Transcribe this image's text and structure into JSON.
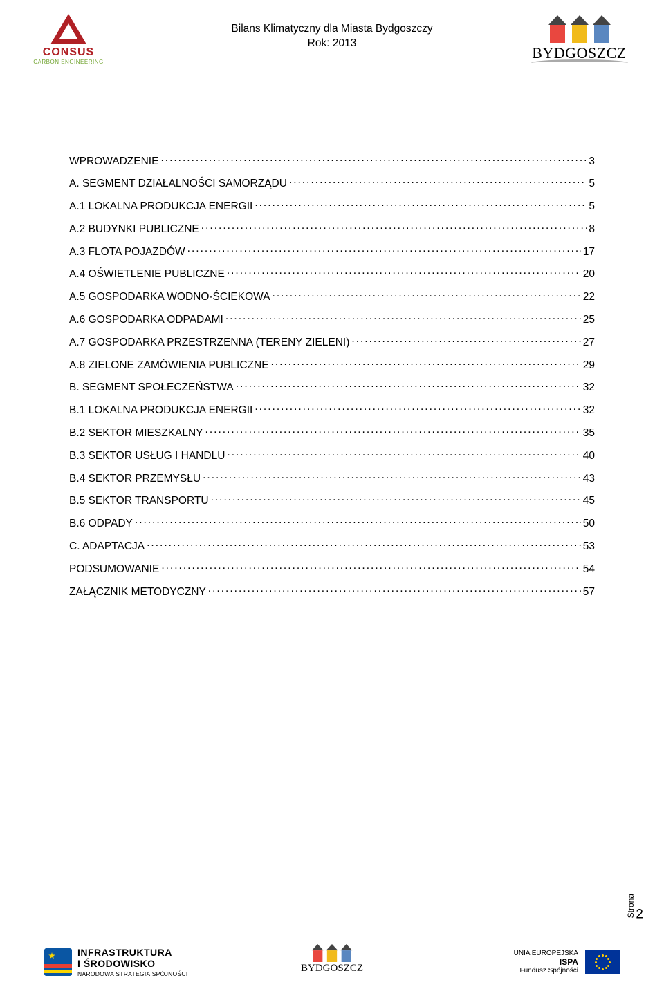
{
  "header": {
    "title_line1": "Bilans Klimatyczny dla Miasta Bydgoszczy",
    "title_line2": "Rok: 2013",
    "logo_left": {
      "name": "CONSUS",
      "sub": "CARBON ENGINEERING",
      "color": "#b02025",
      "sub_color": "#73a533"
    },
    "logo_right": {
      "text": "BYDGOSZCZ",
      "house_colors": [
        "#e9473f",
        "#f1bb1b",
        "#5a87c0"
      ]
    }
  },
  "toc": {
    "font_size_pt": 12,
    "items": [
      {
        "label": "WPROWADZENIE",
        "page": "3"
      },
      {
        "label": "A. SEGMENT DZIAŁALNOŚCI SAMORZĄDU",
        "page": "5"
      },
      {
        "label": "A.1 LOKALNA PRODUKCJA ENERGII",
        "page": "5"
      },
      {
        "label": "A.2 BUDYNKI PUBLICZNE",
        "page": "8"
      },
      {
        "label": "A.3 FLOTA POJAZDÓW",
        "page": "17"
      },
      {
        "label": "A.4 OŚWIETLENIE PUBLICZNE",
        "page": "20"
      },
      {
        "label": "A.5 GOSPODARKA WODNO-ŚCIEKOWA",
        "page": "22"
      },
      {
        "label": "A.6 GOSPODARKA ODPADAMI",
        "page": "25"
      },
      {
        "label": "A.7 GOSPODARKA PRZESTRZENNA (TERENY ZIELENI)",
        "page": "27"
      },
      {
        "label": "A.8 ZIELONE ZAMÓWIENIA PUBLICZNE",
        "page": "29"
      },
      {
        "label": "B. SEGMENT SPOŁECZEŃSTWA",
        "page": "32"
      },
      {
        "label": "B.1 LOKALNA PRODUKCJA ENERGII",
        "page": "32"
      },
      {
        "label": "B.2 SEKTOR MIESZKALNY",
        "page": "35"
      },
      {
        "label": "B.3 SEKTOR USŁUG I HANDLU",
        "page": "40"
      },
      {
        "label": "B.4 SEKTOR PRZEMYSŁU",
        "page": "43"
      },
      {
        "label": "B.5 SEKTOR TRANSPORTU",
        "page": "45"
      },
      {
        "label": "B.6 ODPADY",
        "page": "50"
      },
      {
        "label": "C. ADAPTACJA",
        "page": "53"
      },
      {
        "label": "PODSUMOWANIE",
        "page": "54"
      },
      {
        "label": "ZAŁĄCZNIK METODYCZNY",
        "page": "57"
      }
    ]
  },
  "footer": {
    "left": {
      "line1": "INFRASTRUKTURA",
      "line2": "I ŚRODOWISKO",
      "line3": "NARODOWA STRATEGIA SPÓJNOŚCI"
    },
    "center": {
      "text": "BYDGOSZCZ"
    },
    "right": {
      "line1": "UNIA EUROPEJSKA",
      "line2": "ISPA",
      "line3": "Fundusz Spójności",
      "flag_bg": "#003399",
      "star_color": "#ffcc00"
    }
  },
  "page_indicator": {
    "label": "Strona",
    "number": "2"
  },
  "colors": {
    "text": "#000000",
    "background": "#ffffff"
  }
}
